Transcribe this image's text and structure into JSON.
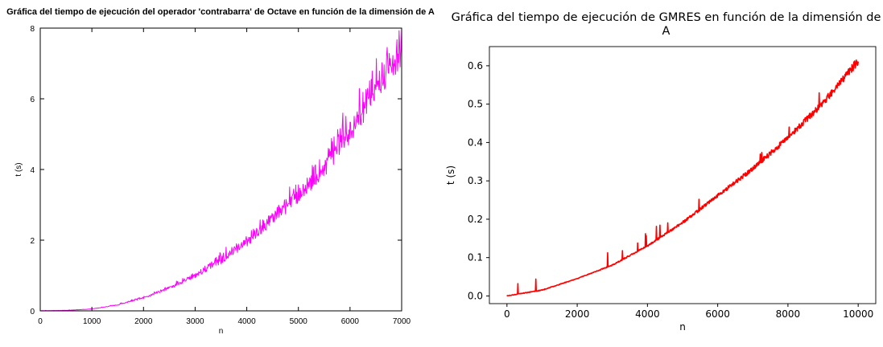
{
  "chart_data": [
    {
      "type": "line",
      "title": "Gráfica del tiempo de ejecución del operador 'contrabarra' de Octave en función de la dimensión de A",
      "xlabel": "n",
      "ylabel": "t (s)",
      "xlim": [
        0,
        7000
      ],
      "ylim": [
        0,
        8
      ],
      "x_ticks": [
        "0",
        "1000",
        "2000",
        "3000",
        "4000",
        "5000",
        "6000",
        "7000"
      ],
      "y_ticks": [
        "0",
        "2",
        "4",
        "6",
        "8"
      ],
      "grid": false,
      "series": [
        {
          "color": "#ff00ff",
          "x": [
            0,
            500,
            1000,
            1500,
            2000,
            2500,
            3000,
            3500,
            4000,
            4500,
            5000,
            5500,
            6000,
            6500,
            7000
          ],
          "y": [
            0,
            0.01,
            0.05,
            0.16,
            0.35,
            0.62,
            0.95,
            1.35,
            1.85,
            2.5,
            3.1,
            3.85,
            4.8,
            5.95,
            7.0
          ]
        }
      ]
    },
    {
      "type": "line",
      "title": "Gráfica del tiempo de ejecución de GMRES en función de la dimensión de A",
      "xlabel": "n",
      "ylabel": "t (s)",
      "xlim": [
        -500,
        10500
      ],
      "ylim": [
        -0.02,
        0.65
      ],
      "x_ticks": [
        "0",
        "2000",
        "4000",
        "6000",
        "8000",
        "10000"
      ],
      "y_ticks": [
        "0.0",
        "0.1",
        "0.2",
        "0.3",
        "0.4",
        "0.5",
        "0.6"
      ],
      "grid": false,
      "series": [
        {
          "color": "#ff0000",
          "x": [
            0,
            1000,
            2000,
            3000,
            4000,
            5000,
            6000,
            7000,
            8000,
            9000,
            10000
          ],
          "y": [
            0,
            0.015,
            0.045,
            0.08,
            0.13,
            0.19,
            0.26,
            0.33,
            0.41,
            0.5,
            0.61
          ]
        }
      ]
    }
  ]
}
